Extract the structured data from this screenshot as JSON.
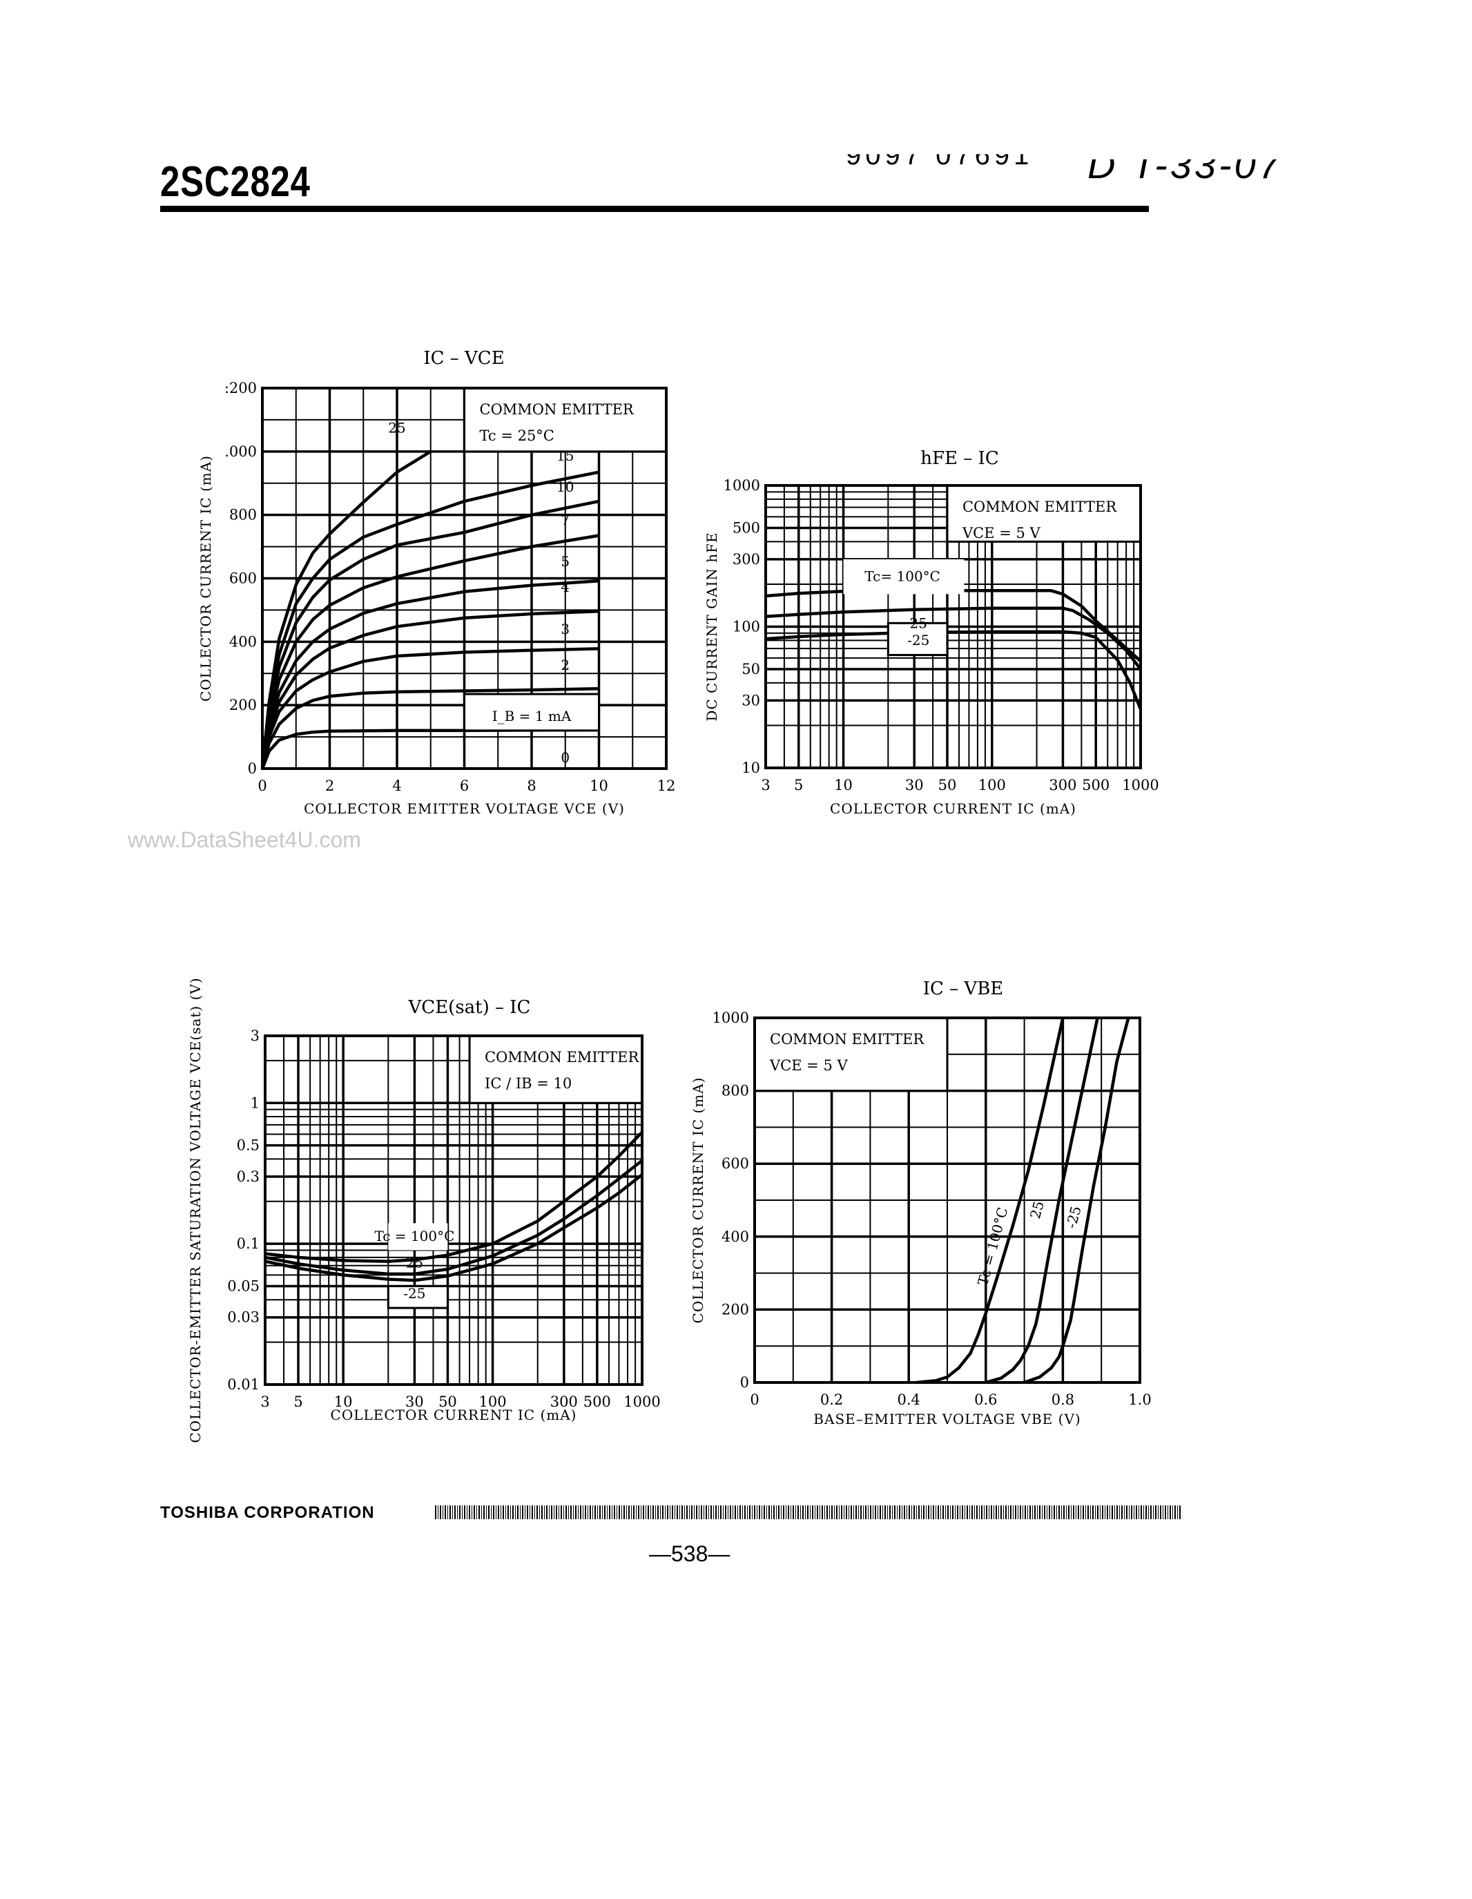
{
  "header": {
    "part_number": "2SC2824",
    "stamp_left": "9097 07691",
    "stamp_right": "D T-33-07"
  },
  "watermark": "www.DataSheet4U.com",
  "footer": {
    "company": "TOSHIBA CORPORATION",
    "page_number": "—538—"
  },
  "chart_data": [
    {
      "id": "ic-vce",
      "type": "line",
      "title": "IC – VCE",
      "xlabel": "COLLECTOR EMITTER VOLTAGE VCE (V)",
      "ylabel": "COLLECTOR CURRENT IC (mA)",
      "xlim": [
        0,
        12
      ],
      "ylim": [
        0,
        1200
      ],
      "xscale": "linear",
      "yscale": "linear",
      "xticks": [
        0,
        2,
        4,
        6,
        8,
        10,
        12
      ],
      "yticks": [
        0,
        200,
        400,
        600,
        800,
        1000,
        1200
      ],
      "ytick_labels": [
        "0",
        "200",
        "400",
        "600",
        "800",
        ".000",
        ":200"
      ],
      "grid": true,
      "annotation_box": [
        "COMMON EMITTER",
        "Tc = 25°C"
      ],
      "series_param": "IB (mA)",
      "series": [
        {
          "name": "IB = 1 mA",
          "label": "I_B = 1 mA",
          "x": [
            0,
            0.2,
            0.5,
            1,
            1.5,
            2,
            4,
            6,
            8,
            10
          ],
          "y": [
            0,
            55,
            90,
            108,
            115,
            118,
            120,
            120,
            121,
            122
          ]
        },
        {
          "name": "2",
          "label": "2",
          "x": [
            0,
            0.2,
            0.5,
            1,
            1.5,
            2,
            3,
            4,
            6,
            8,
            10
          ],
          "y": [
            0,
            80,
            140,
            190,
            215,
            228,
            238,
            242,
            245,
            248,
            252
          ]
        },
        {
          "name": "3",
          "label": "3",
          "x": [
            0,
            0.2,
            0.5,
            1,
            1.5,
            2,
            3,
            4,
            6,
            8,
            10
          ],
          "y": [
            0,
            100,
            180,
            245,
            280,
            305,
            338,
            355,
            367,
            373,
            378
          ]
        },
        {
          "name": "4",
          "label": "4",
          "x": [
            0,
            0.2,
            0.5,
            1,
            1.5,
            2,
            3,
            4,
            6,
            8,
            10
          ],
          "y": [
            0,
            115,
            210,
            295,
            345,
            380,
            420,
            448,
            475,
            488,
            496
          ]
        },
        {
          "name": "5",
          "label": "5",
          "x": [
            0,
            0.2,
            0.5,
            1,
            1.5,
            2,
            3,
            4,
            6,
            8,
            10
          ],
          "y": [
            0,
            130,
            240,
            340,
            400,
            440,
            490,
            520,
            558,
            578,
            592
          ]
        },
        {
          "name": "7",
          "label": "7",
          "x": [
            0,
            0.2,
            0.5,
            1,
            1.5,
            2,
            3,
            4,
            6,
            8,
            10
          ],
          "y": [
            0,
            150,
            280,
            400,
            470,
            515,
            570,
            605,
            655,
            700,
            735
          ]
        },
        {
          "name": "10",
          "label": "10",
          "x": [
            0,
            0.2,
            0.5,
            1,
            1.5,
            2,
            3,
            4,
            6,
            8,
            10
          ],
          "y": [
            0,
            165,
            320,
            460,
            540,
            595,
            660,
            705,
            745,
            800,
            843
          ]
        },
        {
          "name": "15",
          "label": "15",
          "x": [
            0,
            0.2,
            0.5,
            1,
            1.5,
            2,
            3,
            4,
            6,
            8,
            10
          ],
          "y": [
            0,
            185,
            360,
            520,
            600,
            660,
            730,
            770,
            843,
            893,
            935
          ]
        },
        {
          "name": "25",
          "label": "25",
          "x": [
            0,
            0.2,
            0.5,
            1,
            1.5,
            2,
            3,
            4,
            5
          ],
          "y": [
            0,
            210,
            410,
            580,
            680,
            740,
            840,
            935,
            1000
          ]
        }
      ]
    },
    {
      "id": "hfe-ic",
      "type": "line",
      "title": "hFE – IC",
      "xlabel": "COLLECTOR CURRENT IC (mA)",
      "ylabel": "DC CURRENT GAIN hFE",
      "xlim": [
        3,
        1000
      ],
      "ylim": [
        10,
        1000
      ],
      "xscale": "log",
      "yscale": "log",
      "xticks": [
        3,
        5,
        10,
        30,
        50,
        100,
        300,
        500,
        1000
      ],
      "yticks": [
        10,
        30,
        50,
        100,
        300,
        500,
        1000
      ],
      "grid": true,
      "annotation_box": [
        "COMMON EMITTER",
        "VCE = 5 V"
      ],
      "series": [
        {
          "name": "Tc = 100°C",
          "label": "Tc= 100°C",
          "x": [
            3,
            5,
            10,
            30,
            100,
            250,
            300,
            400,
            500,
            700,
            1000
          ],
          "y": [
            165,
            172,
            178,
            180,
            180,
            180,
            170,
            140,
            110,
            80,
            57
          ]
        },
        {
          "name": "Tc = 25°C",
          "label": "25",
          "x": [
            3,
            5,
            10,
            30,
            100,
            300,
            350,
            450,
            600,
            800,
            1000
          ],
          "y": [
            118,
            122,
            127,
            132,
            135,
            135,
            130,
            112,
            90,
            68,
            50
          ]
        },
        {
          "name": "Tc = -25°C",
          "label": "-25",
          "x": [
            3,
            5,
            10,
            30,
            100,
            300,
            400,
            500,
            700,
            850,
            1000
          ],
          "y": [
            82,
            85,
            88,
            91,
            92,
            92,
            90,
            84,
            58,
            40,
            26
          ]
        }
      ]
    },
    {
      "id": "vcesat-ic",
      "type": "line",
      "title": "VCE(sat) – IC",
      "xlabel": "COLLECTOR CURRENT IC (mA)",
      "ylabel": "COLLECTOR-EMITTER SATURATION VOLTAGE VCE(sat) (V)",
      "xlim": [
        3,
        1000
      ],
      "ylim": [
        0.01,
        3
      ],
      "xscale": "log",
      "yscale": "log",
      "xticks": [
        3,
        5,
        10,
        30,
        50,
        100,
        300,
        500,
        1000
      ],
      "yticks": [
        0.01,
        0.03,
        0.05,
        0.1,
        0.3,
        0.5,
        1,
        3
      ],
      "grid": true,
      "annotation_box": [
        "COMMON EMITTER",
        "IC / IB = 10"
      ],
      "series": [
        {
          "name": "Tc = 100°C",
          "label": "Tc = 100°C",
          "x": [
            3,
            5,
            10,
            20,
            30,
            50,
            100,
            200,
            300,
            500,
            700,
            1000
          ],
          "y": [
            0.085,
            0.08,
            0.076,
            0.075,
            0.077,
            0.083,
            0.1,
            0.145,
            0.2,
            0.3,
            0.42,
            0.62
          ]
        },
        {
          "name": "Tc = 25°C",
          "label": "25",
          "x": [
            3,
            5,
            10,
            20,
            30,
            50,
            100,
            200,
            300,
            500,
            700,
            1000
          ],
          "y": [
            0.08,
            0.072,
            0.065,
            0.061,
            0.061,
            0.066,
            0.082,
            0.115,
            0.15,
            0.22,
            0.29,
            0.39
          ]
        },
        {
          "name": "Tc = -25°C",
          "label": "-25",
          "x": [
            3,
            5,
            10,
            20,
            30,
            50,
            100,
            200,
            300,
            500,
            700,
            1000
          ],
          "y": [
            0.075,
            0.067,
            0.06,
            0.056,
            0.055,
            0.059,
            0.072,
            0.1,
            0.13,
            0.18,
            0.23,
            0.31
          ]
        }
      ]
    },
    {
      "id": "ic-vbe",
      "type": "line",
      "title": "IC – VBE",
      "xlabel": "BASE–EMITTER VOLTAGE VBE (V)",
      "ylabel": "COLLECTOR CURRENT IC (mA)",
      "xlim": [
        0,
        1.0
      ],
      "ylim": [
        0,
        1000
      ],
      "xscale": "linear",
      "yscale": "linear",
      "xticks": [
        0,
        0.2,
        0.4,
        0.6,
        0.8,
        1.0
      ],
      "yticks": [
        0,
        200,
        400,
        600,
        800,
        1000
      ],
      "grid": true,
      "annotation_box": [
        "COMMON EMITTER",
        "VCE = 5 V"
      ],
      "series": [
        {
          "name": "Tc = 100°C",
          "label": "Tc = 100°C",
          "x": [
            0.42,
            0.47,
            0.5,
            0.53,
            0.56,
            0.58,
            0.6,
            0.63,
            0.67,
            0.71,
            0.75,
            0.8
          ],
          "y": [
            0,
            5,
            15,
            40,
            80,
            130,
            190,
            290,
            430,
            580,
            760,
            1000
          ]
        },
        {
          "name": "Tc = 25°C",
          "label": "25",
          "x": [
            0.6,
            0.64,
            0.67,
            0.69,
            0.71,
            0.73,
            0.74,
            0.76,
            0.79,
            0.82,
            0.86,
            0.89
          ],
          "y": [
            0,
            12,
            35,
            60,
            100,
            160,
            210,
            330,
            500,
            650,
            850,
            1000
          ]
        },
        {
          "name": "Tc = -25°C",
          "label": "-25",
          "x": [
            0.7,
            0.74,
            0.77,
            0.79,
            0.8,
            0.82,
            0.83,
            0.85,
            0.88,
            0.91,
            0.94,
            0.97
          ],
          "y": [
            0,
            15,
            40,
            70,
            100,
            170,
            230,
            360,
            540,
            700,
            880,
            1000
          ]
        }
      ]
    }
  ]
}
